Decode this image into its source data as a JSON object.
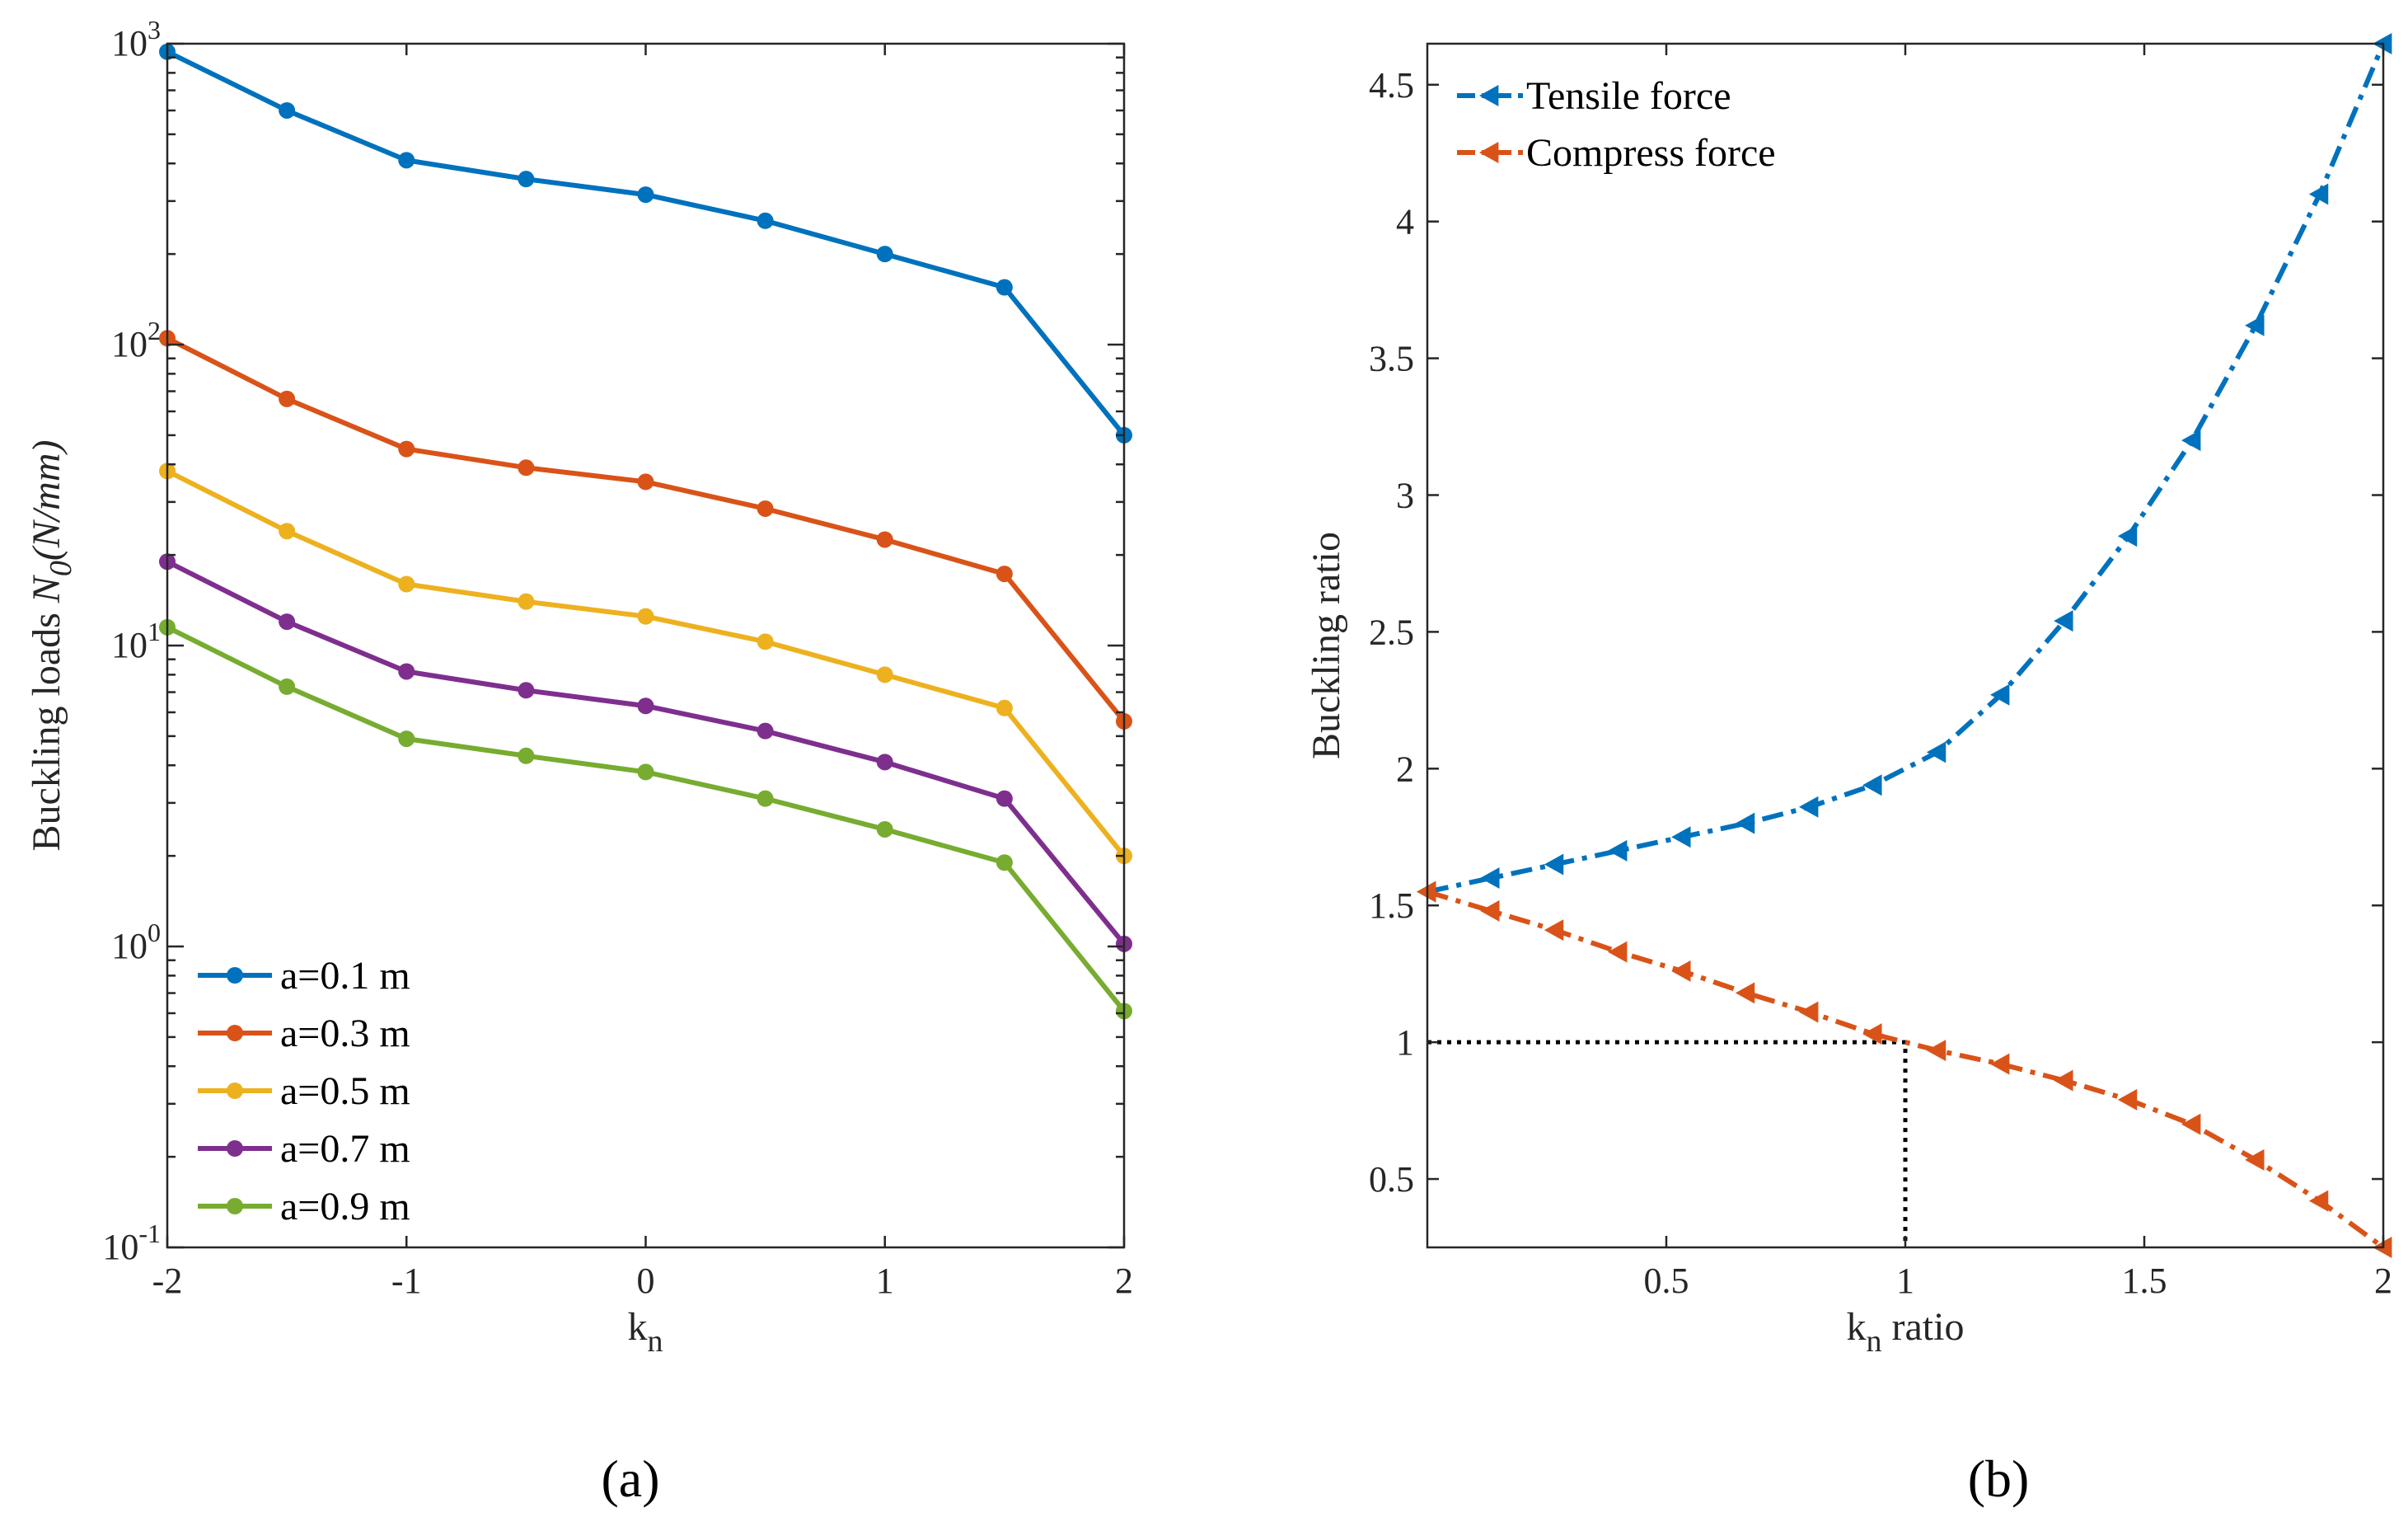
{
  "chart_data": [
    {
      "type": "line",
      "yscale": "log",
      "panel_label": "(a)",
      "xlabel": "k",
      "xlabel_sub": "n",
      "ylabel": "Buckling loads ",
      "ylabel_sym": "N",
      "ylabel_sub": "0",
      "ylabel_unit": "(N/mm)",
      "xlim": [
        -2,
        2
      ],
      "ylim": [
        0.1,
        1000
      ],
      "x": [
        -2,
        -1.5,
        -1,
        -0.5,
        0,
        0.5,
        1,
        1.5,
        2
      ],
      "xticks": [
        -2,
        -1,
        0,
        1,
        2
      ],
      "xtick_labels": [
        "-2",
        "-1",
        "0",
        "1",
        "2"
      ],
      "ytick_exponents": [
        "3",
        "2",
        "1",
        "0",
        "-1"
      ],
      "ytick_base": "10",
      "legend_position": "bottom-left",
      "series": [
        {
          "name": "a=0.1 m",
          "color": "#0072BD",
          "values": [
            940,
            600,
            410,
            355,
            315,
            258,
            200,
            155,
            50
          ]
        },
        {
          "name": "a=0.3 m",
          "color": "#D95319",
          "values": [
            105,
            66,
            45,
            39,
            35,
            28.5,
            22.5,
            17.3,
            5.6
          ]
        },
        {
          "name": "a=0.5 m",
          "color": "#EDB120",
          "values": [
            38,
            24,
            16,
            14,
            12.5,
            10.3,
            8.0,
            6.2,
            2.0
          ]
        },
        {
          "name": "a=0.7 m",
          "color": "#7E2F8E",
          "values": [
            19,
            12,
            8.2,
            7.1,
            6.3,
            5.2,
            4.1,
            3.1,
            1.02
          ]
        },
        {
          "name": "a=0.9 m",
          "color": "#77AC30",
          "values": [
            11.5,
            7.3,
            4.9,
            4.3,
            3.8,
            3.1,
            2.45,
            1.9,
            0.61
          ]
        }
      ]
    },
    {
      "type": "line",
      "panel_label": "(b)",
      "xlabel": "k",
      "xlabel_sub": "n",
      "xlabel_suffix": " ratio",
      "ylabel": "Buckling ratio",
      "xlim": [
        0,
        2
      ],
      "ylim": [
        0.25,
        4.65
      ],
      "xticks": [
        0.5,
        1,
        1.5,
        2
      ],
      "xtick_labels": [
        "0.5",
        "1",
        "1.5",
        "2"
      ],
      "yticks": [
        0.5,
        1,
        1.5,
        2,
        2.5,
        3,
        3.5,
        4,
        4.5
      ],
      "ytick_labels": [
        "0.5",
        "1",
        "1.5",
        "2",
        "2.5",
        "3",
        "3.5",
        "4",
        "4.5"
      ],
      "legend_position": "top-left",
      "reference_point": {
        "x": 1,
        "y": 1
      },
      "series": [
        {
          "name": "Tensile force",
          "color": "#0072BD",
          "x": [
            0,
            0.133,
            0.267,
            0.4,
            0.533,
            0.667,
            0.8,
            0.933,
            1.067,
            1.2,
            1.333,
            1.467,
            1.6,
            1.733,
            1.867,
            2.0
          ],
          "values": [
            1.55,
            1.6,
            1.65,
            1.7,
            1.75,
            1.8,
            1.86,
            1.94,
            2.06,
            2.27,
            2.54,
            2.85,
            3.2,
            3.62,
            4.1,
            4.65
          ]
        },
        {
          "name": "Compress force",
          "color": "#D95319",
          "x": [
            0,
            0.133,
            0.267,
            0.4,
            0.533,
            0.667,
            0.8,
            0.933,
            1.067,
            1.2,
            1.333,
            1.467,
            1.6,
            1.733,
            1.867,
            2.0
          ],
          "values": [
            1.55,
            1.48,
            1.41,
            1.33,
            1.26,
            1.18,
            1.11,
            1.03,
            0.97,
            0.92,
            0.86,
            0.79,
            0.7,
            0.57,
            0.42,
            0.25
          ]
        }
      ]
    }
  ]
}
